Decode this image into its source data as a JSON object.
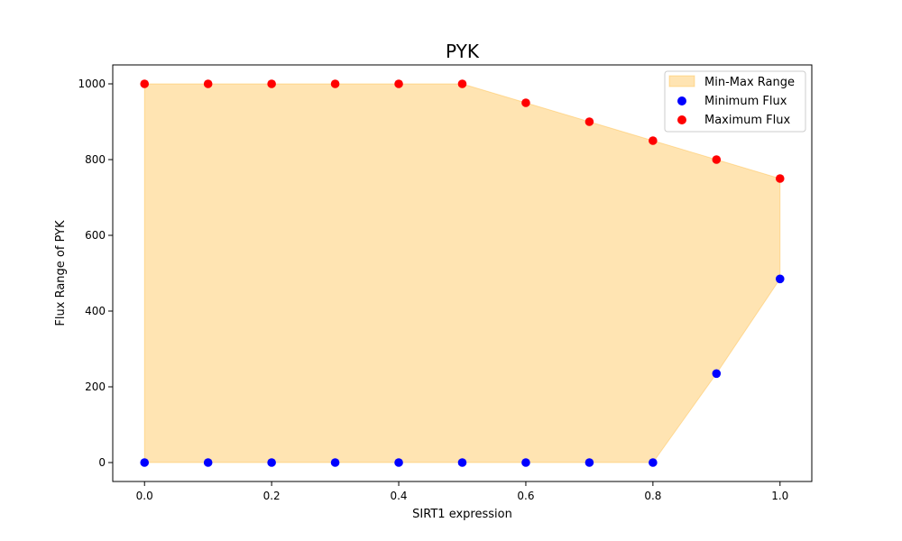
{
  "chart_data": {
    "type": "scatter",
    "title": "PYK",
    "xlabel": "SIRT1 expression",
    "ylabel": "Flux Range of PYK",
    "xlim": [
      -0.05,
      1.05
    ],
    "ylim": [
      -50,
      1050
    ],
    "xticks": [
      0.0,
      0.2,
      0.4,
      0.6,
      0.8,
      1.0
    ],
    "xtick_labels": [
      "0.0",
      "0.2",
      "0.4",
      "0.6",
      "0.8",
      "1.0"
    ],
    "yticks": [
      0,
      200,
      400,
      600,
      800,
      1000
    ],
    "ytick_labels": [
      "0",
      "200",
      "400",
      "600",
      "800",
      "1000"
    ],
    "grid": false,
    "legend_position": "top-right",
    "x": [
      0.0,
      0.1,
      0.2,
      0.3,
      0.4,
      0.5,
      0.6,
      0.7,
      0.8,
      0.9,
      1.0
    ],
    "series": [
      {
        "name": "Min-Max Range",
        "kind": "fill_between",
        "color": "#ffa500"
      },
      {
        "name": "Minimum Flux",
        "kind": "scatter",
        "color": "#0000ff",
        "values": [
          0,
          0,
          0,
          0,
          0,
          0,
          0,
          0,
          0,
          235,
          485
        ]
      },
      {
        "name": "Maximum Flux",
        "kind": "scatter",
        "color": "#ff0000",
        "values": [
          1000,
          1000,
          1000,
          1000,
          1000,
          1000,
          950,
          900,
          850,
          800,
          750
        ]
      }
    ]
  }
}
